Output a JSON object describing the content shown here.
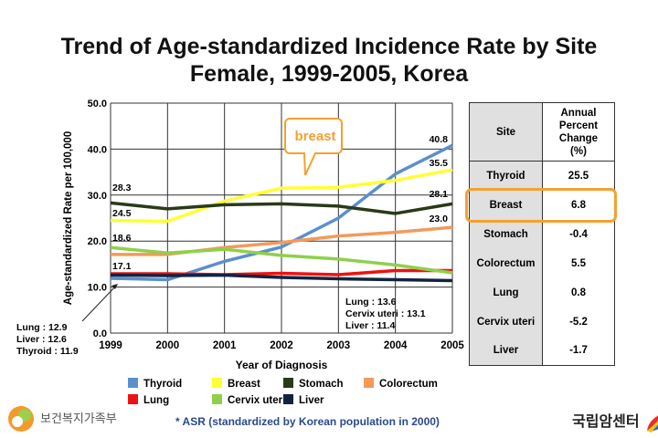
{
  "title_line1": "Trend of Age-standardized Incidence Rate by Site",
  "title_line2": "Female, 1999-2005, Korea",
  "chart_data": {
    "type": "line",
    "xlabel": "Year of Diagnosis",
    "ylabel": "Age-standardized Rate per 100,000",
    "x": [
      1999,
      2000,
      2001,
      2002,
      2003,
      2004,
      2005
    ],
    "ylim": [
      0,
      50
    ],
    "yticks": [
      "0.0",
      "10.0",
      "20.0",
      "30.0",
      "40.0",
      "50.0"
    ],
    "grid": true,
    "legend_placement": "bottom",
    "series": [
      {
        "name": "Thyroid",
        "color": "#5b8fce",
        "values": [
          11.9,
          11.6,
          15.6,
          18.7,
          25.0,
          34.6,
          40.8
        ]
      },
      {
        "name": "Breast",
        "color": "#ffff33",
        "values": [
          24.5,
          24.3,
          28.7,
          31.5,
          31.7,
          33.2,
          35.5
        ]
      },
      {
        "name": "Stomach",
        "color": "#2a3a18",
        "values": [
          28.3,
          27.0,
          27.9,
          28.1,
          27.6,
          26.0,
          28.1
        ]
      },
      {
        "name": "Colorectum",
        "color": "#f39a5a",
        "values": [
          17.1,
          17.1,
          18.6,
          19.7,
          21.1,
          21.9,
          23.0
        ]
      },
      {
        "name": "Lung",
        "color": "#ee1111",
        "values": [
          12.9,
          12.9,
          12.7,
          13.0,
          12.7,
          13.6,
          13.6
        ]
      },
      {
        "name": "Cervix uteri",
        "color": "#8fd04a",
        "values": [
          18.6,
          17.4,
          18.2,
          16.9,
          16.1,
          14.8,
          13.1
        ]
      },
      {
        "name": "Liver",
        "color": "#13233f",
        "values": [
          12.6,
          12.5,
          12.6,
          12.1,
          11.8,
          11.6,
          11.4
        ]
      }
    ],
    "data_labels": [
      {
        "text": "28.3",
        "x": 1999,
        "y": 28.3
      },
      {
        "text": "24.5",
        "x": 1999,
        "y": 24.5
      },
      {
        "text": "18.6",
        "x": 1999,
        "y": 18.6
      },
      {
        "text": "17.1",
        "x": 1999,
        "y": 17.1
      },
      {
        "text": "40.8",
        "x": 2005,
        "y": 40.8
      },
      {
        "text": "35.5",
        "x": 2005,
        "y": 35.5
      },
      {
        "text": "28.1",
        "x": 2005,
        "y": 28.1
      },
      {
        "text": "23.0",
        "x": 2005,
        "y": 23.0
      }
    ],
    "callout": "breast",
    "annotation_left": [
      "Lung : 12.9",
      "Liver : 12.6",
      "Thyroid : 11.9"
    ],
    "annotation_right": [
      "Lung : 13.6",
      "Cervix uteri : 13.1",
      "Liver : 11.4"
    ]
  },
  "table": {
    "header_site": "Site",
    "header_apc": [
      "Annual",
      "Percent",
      "Change",
      "(%)"
    ],
    "rows": [
      {
        "site": "Thyroid",
        "apc": "25.5"
      },
      {
        "site": "Breast",
        "apc": "6.8"
      },
      {
        "site": "Stomach",
        "apc": "-0.4"
      },
      {
        "site": "Colorectum",
        "apc": "5.5"
      },
      {
        "site": "Lung",
        "apc": "0.8"
      },
      {
        "site": "Cervix uteri",
        "apc": "-5.2"
      },
      {
        "site": "Liver",
        "apc": "-1.7"
      }
    ],
    "highlight_color": "#f5a030"
  },
  "footnote": "* ASR (standardized by Korean population in 2000)",
  "logo_left": "보건복지가족부",
  "logo_right": "국립암센터"
}
